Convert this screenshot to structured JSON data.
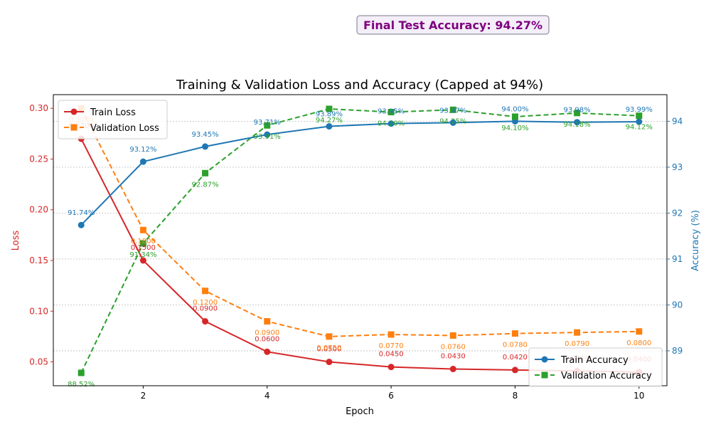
{
  "chart_data": {
    "type": "line",
    "title": "Training & Validation Loss and Accuracy (Capped at 94%)",
    "annotation": "Final Test Accuracy: 94.27%",
    "xlabel": "Epoch",
    "ylabel_left": "Loss",
    "ylabel_right": "Accuracy (%)",
    "x": [
      1,
      2,
      3,
      4,
      5,
      6,
      7,
      8,
      9,
      10
    ],
    "xticks": [
      2,
      4,
      6,
      8,
      10
    ],
    "xlim": [
      0.55,
      10.45
    ],
    "ylim_left": [
      0.0265,
      0.3135
    ],
    "yticks_left": [
      0.05,
      0.1,
      0.15,
      0.2,
      0.25,
      0.3
    ],
    "ytick_labels_left": [
      "0.05",
      "0.10",
      "0.15",
      "0.20",
      "0.25",
      "0.30"
    ],
    "ylim_right": [
      88.24,
      94.58
    ],
    "yticks_right": [
      89,
      90,
      91,
      92,
      93,
      94
    ],
    "ytick_labels_right": [
      "89",
      "90",
      "91",
      "92",
      "93",
      "94"
    ],
    "grid": true,
    "colors": {
      "train_loss": "#d62728",
      "val_loss": "#ff7f0e",
      "train_acc": "#1f77b4",
      "val_acc": "#2ca02c",
      "annotation_text": "#800080",
      "annotation_bg": "#f3eef8",
      "annotation_border": "#7a7a8a"
    },
    "loss_series": [
      {
        "name": "Train Loss",
        "axis": "left",
        "style": "solid",
        "marker": "circle",
        "color": "#d62728",
        "values": [
          0.27,
          0.15,
          0.09,
          0.06,
          0.05,
          0.045,
          0.043,
          0.042,
          0.041,
          0.04
        ],
        "labels": [
          "0.2700",
          "0.1500",
          "0.0900",
          "0.0600",
          "0.0500",
          "0.0450",
          "0.0430",
          "0.0420",
          "0.0410",
          "0.0400"
        ]
      },
      {
        "name": "Validation Loss",
        "axis": "left",
        "style": "dashed",
        "marker": "square",
        "color": "#ff7f0e",
        "values": [
          0.3,
          0.18,
          0.12,
          0.09,
          0.075,
          0.077,
          0.076,
          0.078,
          0.079,
          0.08
        ],
        "labels": [
          "0.3000",
          "0.1800",
          "0.1200",
          "0.0900",
          "0.0750",
          "0.0770",
          "0.0760",
          "0.0780",
          "0.0790",
          "0.0800"
        ]
      }
    ],
    "acc_series": [
      {
        "name": "Train Accuracy",
        "axis": "right",
        "style": "solid",
        "marker": "circle",
        "color": "#1f77b4",
        "values": [
          91.74,
          93.12,
          93.45,
          93.71,
          93.89,
          93.95,
          93.97,
          94.0,
          93.98,
          93.99
        ],
        "labels": [
          "91.74%",
          "93.12%",
          "93.45%",
          "93.71%",
          "93.89%",
          "93.95%",
          "93.97%",
          "94.00%",
          "93.98%",
          "93.99%"
        ]
      },
      {
        "name": "Validation Accuracy",
        "axis": "right",
        "style": "dashed",
        "marker": "square",
        "color": "#2ca02c",
        "values": [
          88.52,
          91.34,
          92.87,
          93.91,
          94.27,
          94.2,
          94.25,
          94.1,
          94.18,
          94.12
        ],
        "labels": [
          "88.52%",
          "91.34%",
          "92.87%",
          "93.91%",
          "94.27%",
          "94.20%",
          "94.25%",
          "94.10%",
          "94.18%",
          "94.12%"
        ]
      }
    ],
    "legend_loss_placement": "upper-left",
    "legend_acc_placement": "lower-right"
  }
}
